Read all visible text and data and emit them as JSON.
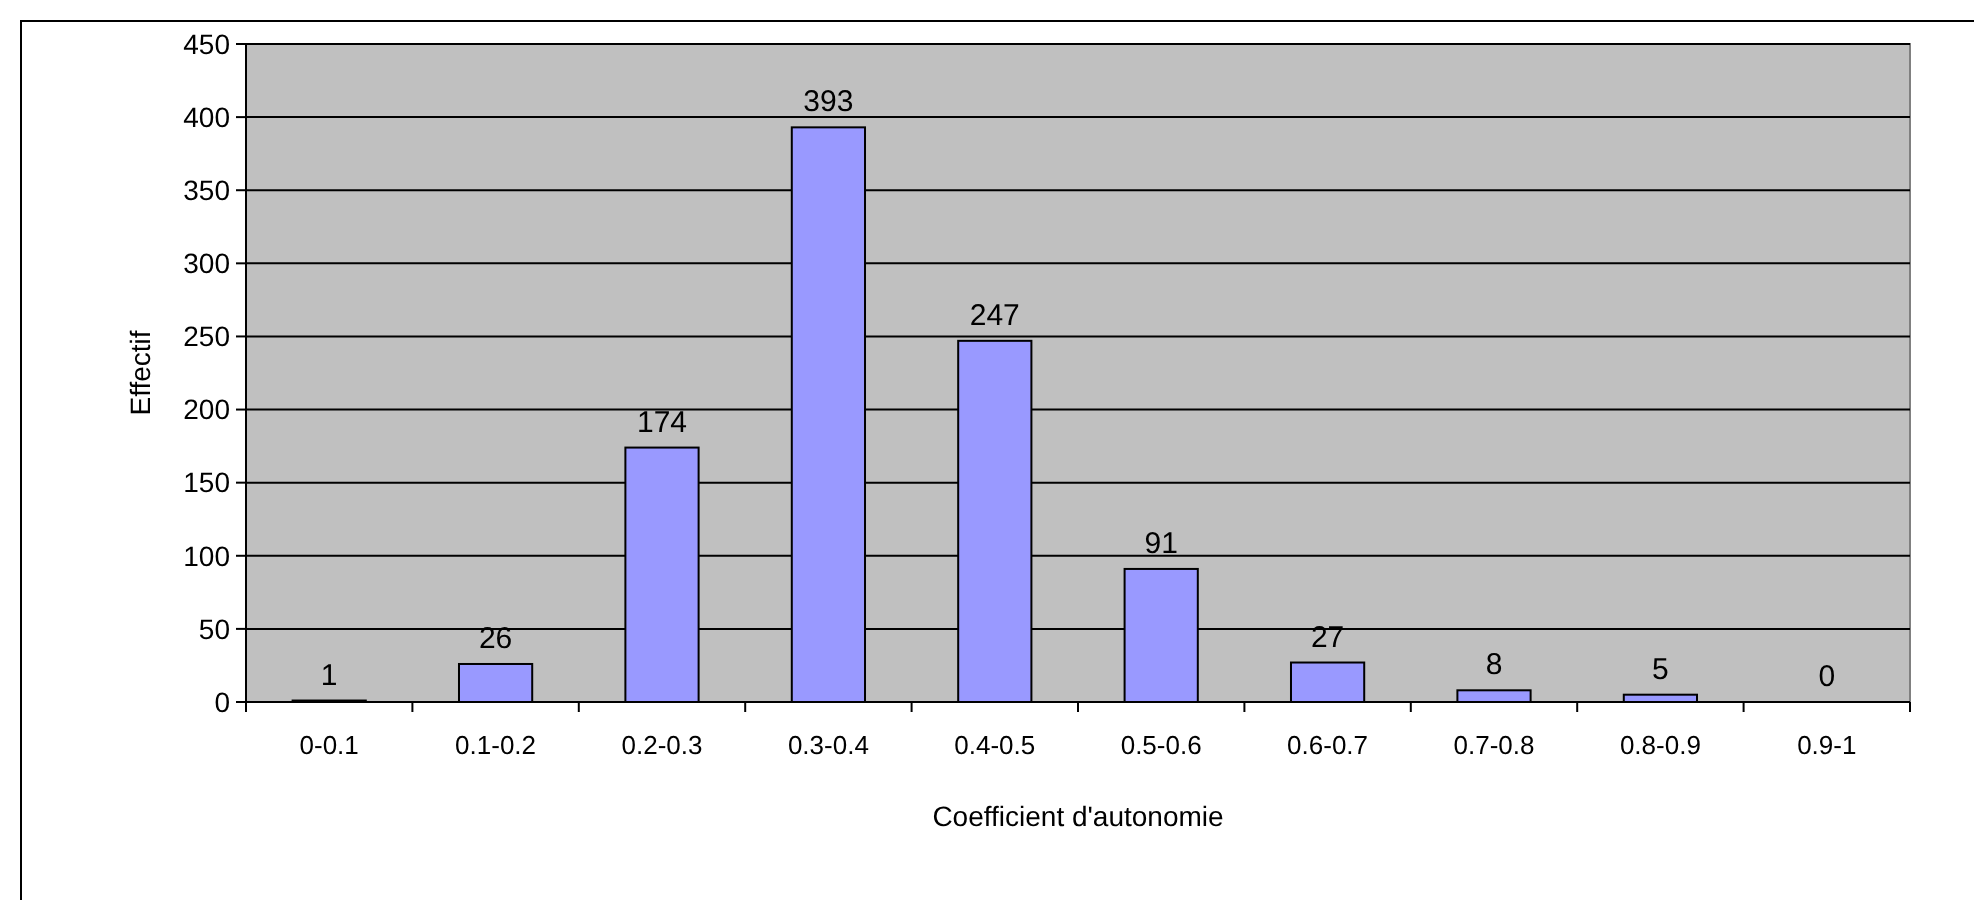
{
  "chart_data": {
    "type": "bar",
    "xlabel": "Coefficient d'autonomie",
    "ylabel": "Effectif",
    "categories": [
      "0-0.1",
      "0.1-0.2",
      "0.2-0.3",
      "0.3-0.4",
      "0.4-0.5",
      "0.5-0.6",
      "0.6-0.7",
      "0.7-0.8",
      "0.8-0.9",
      "0.9-1"
    ],
    "values": [
      1,
      26,
      174,
      393,
      247,
      91,
      27,
      8,
      5,
      0
    ],
    "color": "#9999ff",
    "ylim": [
      0,
      450
    ],
    "yticks": [
      0,
      50,
      100,
      150,
      200,
      250,
      300,
      350,
      400,
      450
    ],
    "grid": "y",
    "data_labels": true
  }
}
